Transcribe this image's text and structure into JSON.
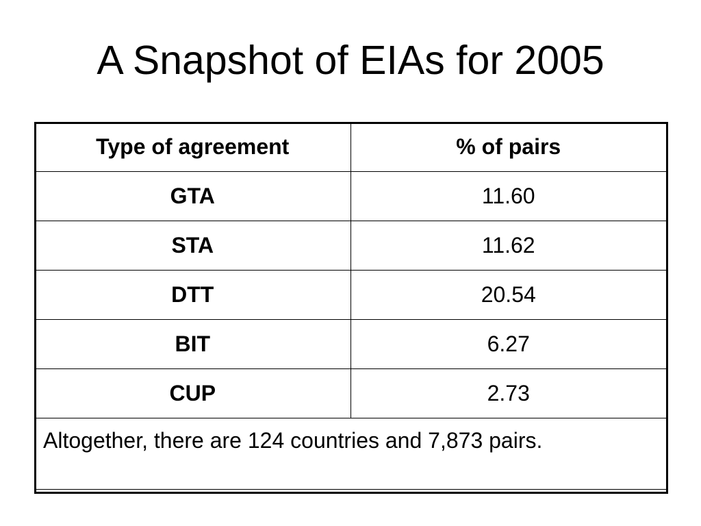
{
  "slide": {
    "title": "A Snapshot of EIAs for 2005"
  },
  "table": {
    "headers": [
      "Type of agreement",
      "% of pairs"
    ],
    "rows": [
      {
        "type": "GTA",
        "value": "11.60"
      },
      {
        "type": "STA",
        "value": "11.62"
      },
      {
        "type": "DTT",
        "value": "20.54"
      },
      {
        "type": "BIT",
        "value": "6.27"
      },
      {
        "type": "CUP",
        "value": "2.73"
      }
    ],
    "footnote": "Altogether, there are 124 countries and 7,873 pairs."
  }
}
